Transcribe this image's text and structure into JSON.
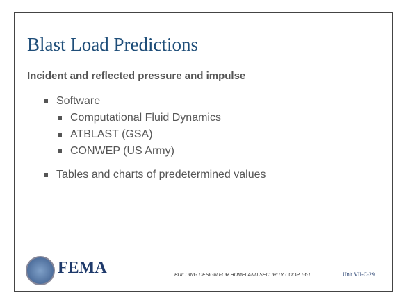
{
  "slide": {
    "title": "Blast Load Predictions",
    "subtitle": "Incident and reflected pressure and impulse",
    "bullets": [
      {
        "text": "Software",
        "children": [
          "Computational Fluid Dynamics",
          "ATBLAST (GSA)",
          "CONWEP (US Army)"
        ]
      },
      {
        "text": "Tables and charts of predetermined values",
        "children": []
      }
    ],
    "logo": "FEMA",
    "footer": "BUILDING DESIGN FOR HOMELAND SECURITY COOP T-t-T",
    "unit": "Unit VII-C-29"
  }
}
